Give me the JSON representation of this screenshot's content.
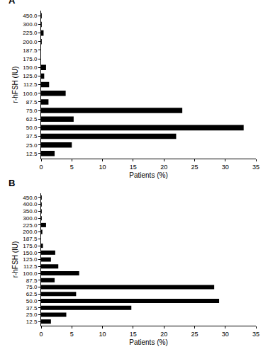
{
  "chart_data": [
    {
      "type": "bar",
      "title": "A",
      "orientation": "horizontal",
      "grid": false,
      "x_label": "Patients (%)",
      "y_label": "r-hFSH (IU)",
      "color": "#000000",
      "categories": [
        "12.5",
        "25.0",
        "37.5",
        "50.0",
        "62.5",
        "75.0",
        "87.5",
        "100.0",
        "112.5",
        "125.0",
        "150.0",
        "175.0",
        "187.5",
        "200.0",
        "225.0",
        "300.0",
        "450.0"
      ],
      "values": [
        2.2,
        5.0,
        22.0,
        33.0,
        5.3,
        23.0,
        1.2,
        4.0,
        1.3,
        0.5,
        0.8,
        0,
        0,
        0.1,
        0.4,
        0.1,
        0.1
      ],
      "xlim": [
        0,
        35
      ],
      "xticks": [
        0,
        5,
        10,
        15,
        20,
        25,
        30,
        35
      ]
    },
    {
      "type": "bar",
      "title": "B",
      "orientation": "horizontal",
      "grid": false,
      "x_label": "Patients (%)",
      "y_label": "r-hFSH (IU)",
      "color": "#000000",
      "categories": [
        "12.5",
        "25.0",
        "37.5",
        "50.0",
        "62.5",
        "75.0",
        "87.5",
        "100.0",
        "112.5",
        "125.0",
        "150.0",
        "175.0",
        "187.5",
        "200.0",
        "225.0",
        "300.0",
        "350.0",
        "400.0",
        "450.0"
      ],
      "values": [
        1.6,
        4.1,
        14.7,
        29.0,
        5.7,
        28.2,
        2.2,
        6.2,
        2.8,
        1.6,
        2.3,
        0.3,
        0,
        0.2,
        0.8,
        0.1,
        0.1,
        0.1,
        0.1
      ],
      "xlim": [
        0,
        35
      ],
      "xticks": [
        0,
        5,
        10,
        15,
        20,
        25,
        30,
        35
      ]
    }
  ]
}
